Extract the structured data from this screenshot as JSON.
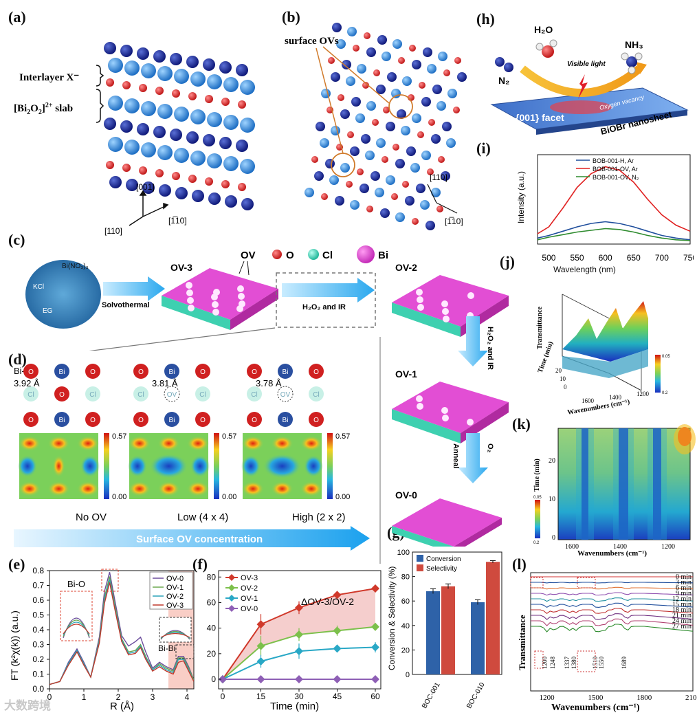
{
  "panels": {
    "a": "(a)",
    "b": "(b)",
    "c": "(c)",
    "d": "(d)",
    "e": "(e)",
    "f": "(f)",
    "g": "(g)",
    "h": "(h)",
    "i": "(i)",
    "j": "(j)",
    "k": "(k)",
    "l": "(l)"
  },
  "panel_a": {
    "label_interlayer": "Interlayer X⁻",
    "label_slab_pre": "[Bi",
    "label_slab_sub1": "2",
    "label_slab_mid": "O",
    "label_slab_sub2": "2",
    "label_slab_post": "]",
    "label_slab_sup": "2+",
    "label_slab_tail": " slab",
    "axis_001": "[001]",
    "axis_110": "[110]",
    "axis_1m10": "[1̅10]"
  },
  "panel_b": {
    "surface_ovs": "surface OVs",
    "axis_110": "[110]",
    "axis_1m10": "[1̅10]"
  },
  "panel_c": {
    "legend_ov": "OV",
    "legend_o": "O",
    "legend_cl": "Cl",
    "legend_bi": "Bi",
    "precursor_bino3": "Bi(NO₃)₃",
    "precursor_kcl": "KCl",
    "precursor_eg": "EG",
    "step_solvothermal": "Solvothermal",
    "step_h2o2_ir": "H₂O₂ and IR",
    "ov3": "OV-3",
    "ov2": "OV-2",
    "ov1": "OV-1",
    "ov0": "OV-0",
    "arrow_h2o2_ir_v": "H₂O₂ and IR",
    "arrow_anneal": "Anneal",
    "arrow_o2": "O₂"
  },
  "panel_d": {
    "bibi": "Bi-Bi",
    "dist1": "3.92 Å",
    "dist2": "3.81 Å",
    "dist3": "3.78 Å",
    "atom_bi": "Bi",
    "atom_o": "O",
    "atom_cl": "Cl",
    "atom_ov": "OV",
    "scale_max": "0.57",
    "scale_min": "0.00",
    "cap1": "No OV",
    "cap2": "Low (4 x 4)",
    "cap3": "High (2 x 2)",
    "banner": "Surface OV concentration"
  },
  "panel_e": {
    "ylabel": "FT (k²χ(k)) (a.u.)",
    "xlabel": "R (Å)",
    "bio": "Bi-O",
    "bibi": "Bi-Bi",
    "legend": [
      "OV-0",
      "OV-1",
      "OV-2",
      "OV-3"
    ],
    "colors": [
      "#6a4c9c",
      "#6aa84f",
      "#2aa3b8",
      "#c0392b"
    ],
    "yticks": [
      "0.0",
      "0.1",
      "0.2",
      "0.3",
      "0.4",
      "0.5",
      "0.6",
      "0.7",
      "0.8"
    ],
    "xticks": [
      "0",
      "1",
      "2",
      "3",
      "4"
    ]
  },
  "panel_f": {
    "xlabel": "Time (min)",
    "annot": "ΔOV-3/OV-2",
    "yticks": [
      "0",
      "20",
      "40",
      "60",
      "80"
    ],
    "xticks": [
      "0",
      "15",
      "30",
      "45",
      "60"
    ]
  },
  "panel_g": {
    "ylabel": "Conversion & Selectivity (%)",
    "legend_conv": "Conversion",
    "legend_sel": "Selectivity",
    "yticks": [
      "0",
      "20",
      "40",
      "60",
      "80",
      "100"
    ]
  },
  "panel_h": {
    "n2": "N₂",
    "h2o": "H₂O",
    "nh3": "NH₃",
    "visible": "Visible light",
    "facet": "{001} facet",
    "vacancy": "Oxygen vacancy",
    "nanosheet": "BiOBr nanosheet"
  },
  "panel_i": {
    "ylabel": "Intensity (a.u.)",
    "xlabel": "Wavelength (nm)",
    "legend": [
      "BOB-001-H, Ar",
      "BOB-001-OV, Ar",
      "BOB-001-OV, N₂"
    ],
    "colors": [
      "#1f4e9c",
      "#e02020",
      "#2e8b2e"
    ],
    "xticks": [
      "500",
      "550",
      "600",
      "650",
      "700",
      "750"
    ]
  },
  "panel_j": {
    "zlabel": "Transmittance",
    "ylabel": "Time (min)",
    "xlabel": "Wavenumbers (cm⁻¹)",
    "xticks": [
      "1600",
      "1400",
      "1200"
    ],
    "yticks": [
      "0",
      "10",
      "20"
    ],
    "cbar_max": "0.05",
    "cbar_min": "0.2"
  },
  "panel_k": {
    "ylabel": "Time (min)",
    "xlabel": "Wavenumbers (cm⁻¹)",
    "xticks": [
      "1600",
      "1400",
      "1200"
    ],
    "yticks": [
      "0",
      "10",
      "20"
    ],
    "cbar_max": "0.05",
    "cbar_min": "0.2"
  },
  "panel_l": {
    "ylabel": "Transmittance",
    "xlabel": "Wavenumbers (cm⁻¹)",
    "times": [
      "0 min",
      "3 min",
      "6 min",
      "9 min",
      "12 min",
      "15 min",
      "18 min",
      "21 min",
      "24 min",
      "27 min"
    ],
    "peaks": [
      "1200",
      "1248",
      "1337",
      "1380",
      "1510",
      "1550",
      "1689"
    ],
    "xticks": [
      "1200",
      "1500",
      "1800",
      "2100"
    ]
  },
  "watermark": "大数跨境",
  "chart_data": [
    {
      "id": "e",
      "type": "line",
      "title": "",
      "xlabel": "R (Å)",
      "ylabel": "FT (k²χ(k)) (a.u.)",
      "xlim": [
        0,
        4.2
      ],
      "ylim": [
        0,
        0.8
      ],
      "x": [
        0,
        0.3,
        0.55,
        0.8,
        1.0,
        1.2,
        1.45,
        1.6,
        1.75,
        1.9,
        2.1,
        2.3,
        2.5,
        2.65,
        2.8,
        3.0,
        3.2,
        3.4,
        3.6,
        3.75,
        3.9,
        4.05,
        4.2
      ],
      "series": [
        {
          "name": "OV-0",
          "values": [
            0.03,
            0.05,
            0.18,
            0.27,
            0.18,
            0.08,
            0.35,
            0.66,
            0.79,
            0.6,
            0.36,
            0.29,
            0.32,
            0.35,
            0.25,
            0.14,
            0.18,
            0.15,
            0.13,
            0.22,
            0.22,
            0.15,
            0.06
          ]
        },
        {
          "name": "OV-1",
          "values": [
            0.03,
            0.05,
            0.17,
            0.26,
            0.17,
            0.08,
            0.33,
            0.62,
            0.76,
            0.57,
            0.34,
            0.25,
            0.26,
            0.3,
            0.22,
            0.13,
            0.17,
            0.14,
            0.12,
            0.21,
            0.21,
            0.14,
            0.06
          ]
        },
        {
          "name": "OV-2",
          "values": [
            0.03,
            0.05,
            0.17,
            0.26,
            0.17,
            0.08,
            0.32,
            0.6,
            0.74,
            0.55,
            0.33,
            0.24,
            0.25,
            0.29,
            0.21,
            0.13,
            0.16,
            0.13,
            0.11,
            0.2,
            0.2,
            0.13,
            0.05
          ]
        },
        {
          "name": "OV-3",
          "values": [
            0.03,
            0.05,
            0.16,
            0.25,
            0.16,
            0.08,
            0.31,
            0.58,
            0.72,
            0.54,
            0.32,
            0.23,
            0.24,
            0.28,
            0.2,
            0.12,
            0.15,
            0.12,
            0.1,
            0.18,
            0.19,
            0.12,
            0.05
          ]
        }
      ]
    },
    {
      "id": "f",
      "type": "line",
      "xlabel": "Time (min)",
      "ylabel": "",
      "xlim": [
        0,
        60
      ],
      "ylim": [
        -5,
        80
      ],
      "x": [
        0,
        15,
        30,
        45,
        60
      ],
      "series": [
        {
          "name": "OV-3",
          "values": [
            0,
            43,
            56,
            66,
            71
          ],
          "err": [
            0,
            8,
            5,
            3,
            3
          ]
        },
        {
          "name": "OV-2",
          "values": [
            0,
            26,
            35,
            38,
            41
          ],
          "err": [
            0,
            8,
            5,
            4,
            3
          ]
        },
        {
          "name": "OV-1",
          "values": [
            0,
            14,
            22,
            24,
            25
          ],
          "err": [
            0,
            5,
            6,
            3,
            4
          ]
        },
        {
          "name": "OV-0",
          "values": [
            0,
            0,
            0,
            0,
            0
          ],
          "err": [
            0,
            0,
            0,
            0,
            0
          ]
        }
      ],
      "colors": [
        "#d0392b",
        "#7cc04b",
        "#29a8c6",
        "#8e5fb5"
      ]
    },
    {
      "id": "g",
      "type": "bar",
      "categories": [
        "BOC-001",
        "BOC-010"
      ],
      "series": [
        {
          "name": "Conversion",
          "values": [
            68,
            59
          ],
          "err": [
            2,
            2
          ]
        },
        {
          "name": "Selectivity",
          "values": [
            72,
            92
          ],
          "err": [
            2,
            1
          ]
        }
      ],
      "ylabel": "Conversion & Selectivity (%)",
      "ylim": [
        0,
        100
      ],
      "colors": [
        "#2e62a8",
        "#cf4a3e"
      ]
    },
    {
      "id": "i",
      "type": "line",
      "xlabel": "Wavelength (nm)",
      "ylabel": "Intensity (a.u.)",
      "xlim": [
        480,
        750
      ],
      "ylim": [
        0,
        1
      ],
      "x": [
        480,
        500,
        525,
        550,
        575,
        600,
        625,
        650,
        675,
        700,
        725,
        750
      ],
      "series": [
        {
          "name": "BOB-001-H, Ar",
          "values": [
            0.07,
            0.1,
            0.15,
            0.2,
            0.24,
            0.26,
            0.24,
            0.2,
            0.15,
            0.1,
            0.07,
            0.05
          ]
        },
        {
          "name": "BOB-001-OV, Ar",
          "values": [
            0.12,
            0.2,
            0.42,
            0.66,
            0.82,
            0.9,
            0.86,
            0.72,
            0.52,
            0.34,
            0.22,
            0.15
          ]
        },
        {
          "name": "BOB-001-OV, N₂",
          "values": [
            0.05,
            0.08,
            0.11,
            0.14,
            0.16,
            0.18,
            0.17,
            0.14,
            0.1,
            0.07,
            0.05,
            0.04
          ]
        }
      ]
    },
    {
      "id": "l",
      "type": "line",
      "xlabel": "Wavenumbers (cm⁻¹)",
      "ylabel": "Transmittance",
      "xlim": [
        1100,
        2100
      ],
      "series_names": [
        "0 min",
        "3 min",
        "6 min",
        "9 min",
        "12 min",
        "15 min",
        "18 min",
        "21 min",
        "24 min",
        "27 min"
      ],
      "peaks": [
        1200,
        1248,
        1337,
        1380,
        1510,
        1550,
        1689
      ]
    }
  ]
}
